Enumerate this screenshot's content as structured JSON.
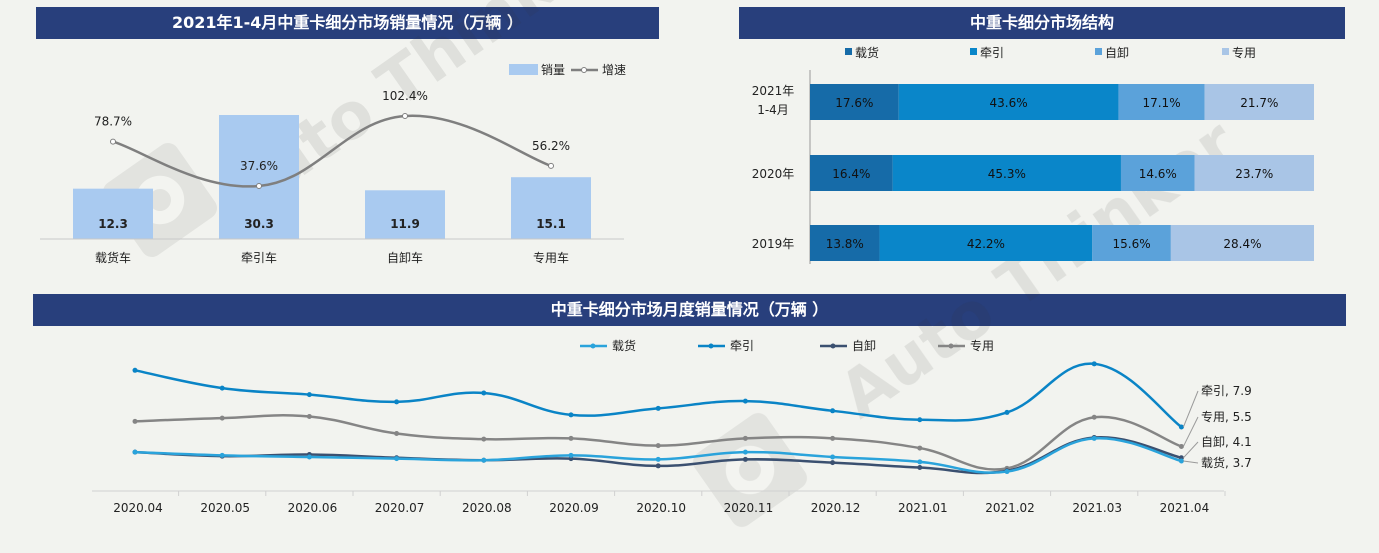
{
  "panel1": {
    "title": "2021年1-4月中重卡细分市场销量情况（万辆 ）",
    "legend": {
      "bar": "销量",
      "line": "增速"
    }
  },
  "panel2": {
    "title": "中重卡细分市场结构"
  },
  "panel3": {
    "title": "中重卡细分市场月度销量情况（万辆 ）"
  },
  "chart_data": [
    {
      "type": "bar",
      "title": "2021年1-4月中重卡细分市场销量情况（万辆 ）",
      "categories": [
        "载货车",
        "牵引车",
        "自卸车",
        "专用车"
      ],
      "series": [
        {
          "name": "销量",
          "values": [
            12.3,
            30.3,
            11.9,
            15.1
          ],
          "labels": [
            "12.3",
            "30.3",
            "11.9",
            "15.1"
          ],
          "color": "#a9caf0"
        },
        {
          "name": "增速",
          "type": "line",
          "values": [
            78.7,
            37.6,
            102.4,
            56.2
          ],
          "labels": [
            "78.7%",
            "37.6%",
            "102.4%",
            "56.2%"
          ],
          "color": "#7f7f7f"
        }
      ],
      "legend": "top-right",
      "grid": false
    },
    {
      "type": "bar",
      "orientation": "horizontal-stacked-100",
      "title": "中重卡细分市场结构",
      "categories": [
        "2021年|1-4月",
        "2020年",
        "2019年"
      ],
      "series": [
        {
          "name": "载货",
          "values": [
            17.6,
            16.4,
            13.8
          ],
          "color": "#166ba8"
        },
        {
          "name": "牵引",
          "values": [
            43.6,
            45.3,
            42.2
          ],
          "color": "#0a86c9"
        },
        {
          "name": "自卸",
          "values": [
            17.1,
            14.6,
            15.6
          ],
          "color": "#5ba2da"
        },
        {
          "name": "专用",
          "values": [
            21.7,
            23.7,
            28.4
          ],
          "color": "#a9c5e6"
        }
      ],
      "legend": "top",
      "grid": false
    },
    {
      "type": "line",
      "title": "中重卡细分市场月度销量情况（万辆 ）",
      "categories": [
        "2020.04",
        "2020.05",
        "2020.06",
        "2020.07",
        "2020.08",
        "2020.09",
        "2020.10",
        "2020.11",
        "2020.12",
        "2021.01",
        "2021.02",
        "2021.03",
        "2021.04"
      ],
      "series": [
        {
          "name": "载货",
          "values": [
            4.8,
            4.4,
            4.2,
            4.0,
            3.8,
            4.4,
            3.9,
            4.8,
            4.2,
            3.6,
            2.4,
            6.5,
            3.7
          ],
          "color": "#2aa3db"
        },
        {
          "name": "牵引",
          "values": [
            14.9,
            12.7,
            11.9,
            11.0,
            12.1,
            9.4,
            10.2,
            11.1,
            9.9,
            8.8,
            9.7,
            15.7,
            7.9
          ],
          "color": "#0a84c6"
        },
        {
          "name": "自卸",
          "values": [
            4.8,
            4.3,
            4.5,
            4.1,
            3.8,
            4.0,
            3.1,
            3.9,
            3.5,
            2.9,
            2.5,
            6.6,
            4.1
          ],
          "color": "#3b5070"
        },
        {
          "name": "专用",
          "values": [
            8.6,
            9.0,
            9.2,
            7.1,
            6.4,
            6.5,
            5.6,
            6.5,
            6.5,
            5.3,
            2.8,
            9.1,
            5.5
          ],
          "color": "#858585"
        }
      ],
      "end_labels": [
        "载货, 3.7",
        "牵引, 7.9",
        "自卸, 4.1",
        "专用, 5.5"
      ],
      "legend": "top",
      "grid": false
    }
  ],
  "watermark": {
    "text": "Auto Thinker",
    "sub": "汽车智库"
  }
}
